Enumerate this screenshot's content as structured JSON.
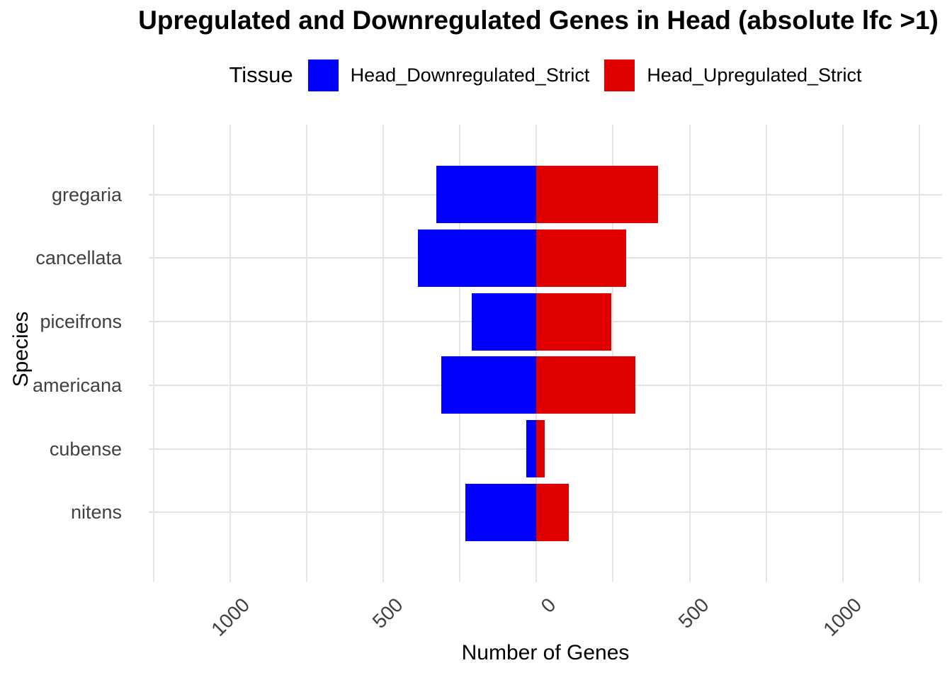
{
  "title": "Upregulated and Downregulated Genes in Head (absolute lfc >1)",
  "legend": {
    "title": "Tissue",
    "position": "top",
    "entries": [
      {
        "label": "Head_Downregulated_Strict",
        "color": "#0000FA"
      },
      {
        "label": "Head_Upregulated_Strict",
        "color": "#E10000"
      }
    ]
  },
  "chart_data": {
    "type": "bar",
    "orientation": "horizontal-diverging",
    "title": "Upregulated and Downregulated Genes in Head (absolute lfc >1)",
    "xlabel": "Number of Genes",
    "ylabel": "Species",
    "categories": [
      "gregaria",
      "cancellata",
      "piceifrons",
      "americana",
      "cubense",
      "nitens"
    ],
    "series": [
      {
        "name": "Head_Downregulated_Strict",
        "color": "#0000FA",
        "direction": "negative",
        "values": [
          328,
          387,
          211,
          312,
          33,
          233
        ]
      },
      {
        "name": "Head_Upregulated_Strict",
        "color": "#E10000",
        "direction": "positive",
        "values": [
          397,
          292,
          245,
          322,
          26,
          105
        ]
      }
    ],
    "xlim": [
      -1267,
      1325
    ],
    "grid": true,
    "grid_step": 250,
    "x_ticks": [
      {
        "value": -1000,
        "label": "1000"
      },
      {
        "value": -500,
        "label": "500"
      },
      {
        "value": 0,
        "label": "0"
      },
      {
        "value": 500,
        "label": "500"
      },
      {
        "value": 1000,
        "label": "1000"
      }
    ],
    "bar_width_frac": 0.9
  }
}
